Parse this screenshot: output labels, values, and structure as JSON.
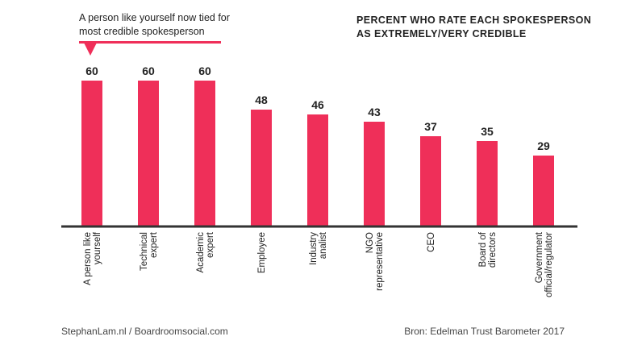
{
  "callout": {
    "line1": "A person like yourself now tied for",
    "line2": "most credible spokesperson"
  },
  "chart_data": {
    "type": "bar",
    "title_lines": [
      "PERCENT WHO RATE EACH SPOKESPERSON",
      "AS EXTREMELY/VERY  CREDIBLE"
    ],
    "categories": [
      [
        "A person like",
        "yourself"
      ],
      [
        "Technical",
        "expert"
      ],
      [
        "Academic",
        "expert"
      ],
      [
        "Employee"
      ],
      [
        "Industry",
        "analist"
      ],
      [
        "NGO",
        "representative"
      ],
      [
        "CEO"
      ],
      [
        "Board of",
        "directors"
      ],
      [
        "Government",
        "official/regulator"
      ]
    ],
    "values": [
      60,
      60,
      60,
      48,
      46,
      43,
      37,
      35,
      29
    ],
    "bar_color": "#ef2f59",
    "axis_color": "#333333"
  },
  "footer": {
    "left": "StephanLam.nl  /  Boardroomsocial.com",
    "right": "Bron:  Edelman Trust Barometer 2017"
  }
}
